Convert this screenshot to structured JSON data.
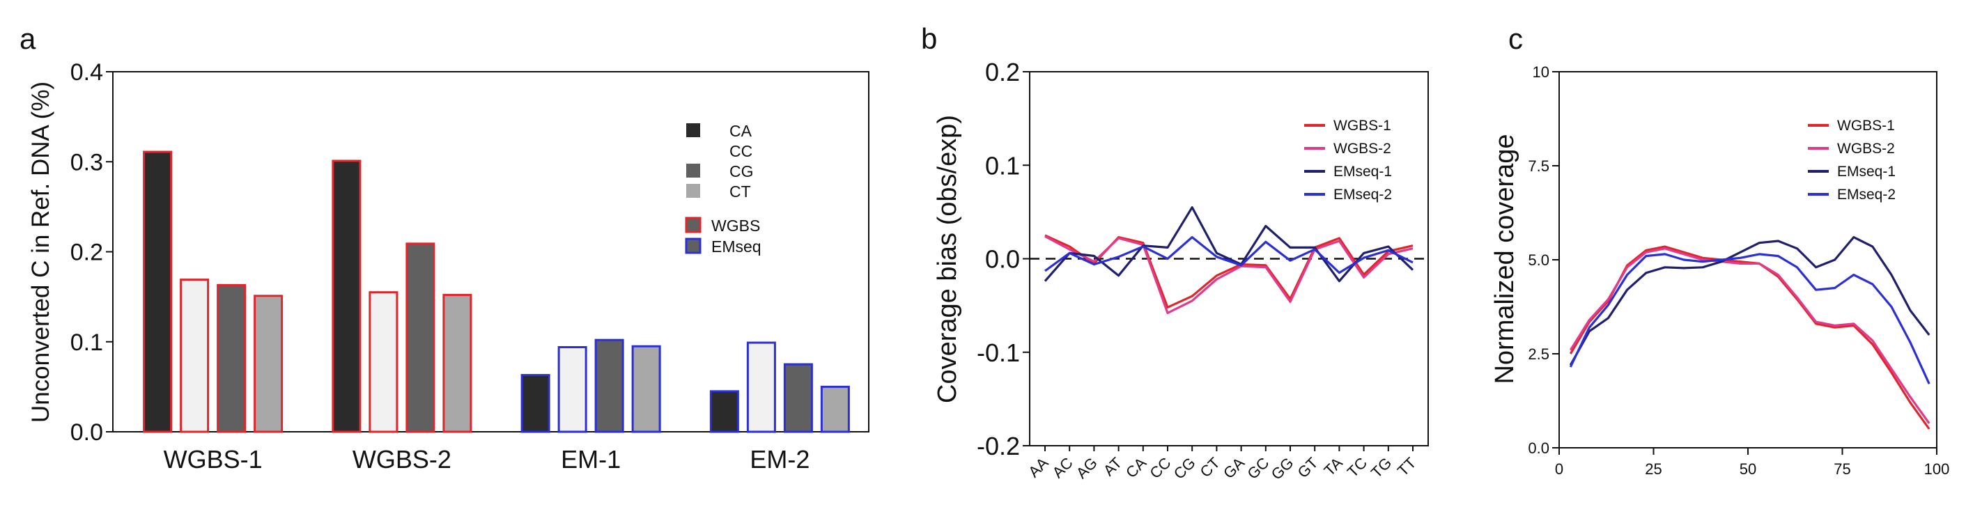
{
  "panels": [
    {
      "letter": "a",
      "chart_data": {
        "type": "bar",
        "ylabel": "Unconverted C in Ref. DNA (%)",
        "ylim": [
          0,
          0.4
        ],
        "yticks": [
          0.0,
          0.1,
          0.2,
          0.3,
          0.4
        ],
        "ytick_labels": [
          "0.0",
          "0.1",
          "0.2",
          "0.3",
          "0.4"
        ],
        "categories": [
          "WGBS-1",
          "WGBS-2",
          "EM-1",
          "EM-2"
        ],
        "category_method": [
          "WGBS",
          "WGBS",
          "EMseq",
          "EMseq"
        ],
        "series": [
          {
            "name": "CA",
            "color": "#2b2b2b",
            "values": [
              0.311,
              0.301,
              0.063,
              0.045
            ]
          },
          {
            "name": "CC",
            "color": "#f1f1f1",
            "values": [
              0.169,
              0.155,
              0.094,
              0.099
            ]
          },
          {
            "name": "CG",
            "color": "#606060",
            "values": [
              0.163,
              0.209,
              0.102,
              0.075
            ]
          },
          {
            "name": "CT",
            "color": "#a8a8a8",
            "values": [
              0.151,
              0.152,
              0.095,
              0.05
            ]
          }
        ],
        "method_legend": [
          {
            "name": "WGBS",
            "edge_color": "#e0262b"
          },
          {
            "name": "EMseq",
            "edge_color": "#2b2fd6"
          }
        ],
        "legend_position": "right"
      }
    },
    {
      "letter": "b",
      "chart_data": {
        "type": "line",
        "ylabel": "Coverage bias (obs/exp)",
        "ylim": [
          -0.2,
          0.2
        ],
        "yticks": [
          -0.2,
          -0.1,
          0.0,
          0.1,
          0.2
        ],
        "ytick_labels": [
          "-0.2",
          "-0.1",
          "0.0",
          "0.1",
          "0.2"
        ],
        "categories": [
          "AA",
          "AC",
          "AG",
          "AT",
          "CA",
          "CC",
          "CG",
          "CT",
          "GA",
          "GC",
          "GG",
          "GT",
          "TA",
          "TC",
          "TG",
          "TT"
        ],
        "reference_line": 0.0,
        "series": [
          {
            "name": "WGBS-1",
            "color": "#e0262b",
            "values": [
              0.025,
              0.013,
              -0.005,
              0.023,
              0.017,
              -0.052,
              -0.04,
              -0.018,
              -0.006,
              -0.007,
              -0.043,
              0.012,
              0.022,
              -0.017,
              0.008,
              0.014
            ]
          },
          {
            "name": "WGBS-2",
            "color": "#e23a8a",
            "values": [
              0.024,
              0.01,
              -0.003,
              0.022,
              0.015,
              -0.058,
              -0.045,
              -0.022,
              -0.008,
              -0.009,
              -0.046,
              0.01,
              0.019,
              -0.02,
              0.005,
              0.011
            ]
          },
          {
            "name": "EMseq-1",
            "color": "#1f1f6e",
            "values": [
              -0.024,
              0.006,
              0.003,
              -0.018,
              0.014,
              0.012,
              0.055,
              0.006,
              -0.006,
              0.035,
              0.012,
              0.012,
              -0.024,
              0.006,
              0.013,
              -0.012
            ]
          },
          {
            "name": "EMseq-2",
            "color": "#2b2fd6",
            "values": [
              -0.013,
              0.006,
              -0.006,
              0.002,
              0.013,
              0.0,
              0.023,
              0.002,
              -0.007,
              0.018,
              -0.002,
              0.01,
              -0.015,
              0.001,
              0.009,
              -0.004
            ]
          }
        ],
        "legend_position": "top-right"
      }
    },
    {
      "letter": "c",
      "chart_data": {
        "type": "line",
        "ylabel": "Normalized coverage",
        "xlim": [
          0,
          100
        ],
        "ylim": [
          0,
          10
        ],
        "xticks": [
          0,
          25,
          50,
          75,
          100
        ],
        "xtick_labels": [
          "0",
          "25",
          "50",
          "75",
          "100"
        ],
        "yticks": [
          0,
          2.5,
          5,
          7.5,
          10
        ],
        "ytick_labels": [
          "0.0",
          "2.5",
          "5.0",
          "7.5",
          "10"
        ],
        "x": [
          3,
          8,
          13,
          18,
          23,
          28,
          33,
          38,
          43,
          48,
          53,
          58,
          63,
          68,
          73,
          78,
          83,
          88,
          93,
          98
        ],
        "series": [
          {
            "name": "WGBS-1",
            "color": "#e0262b",
            "values": [
              2.5,
              3.35,
              3.9,
              4.85,
              5.25,
              5.35,
              5.2,
              5.05,
              5.0,
              4.95,
              4.9,
              4.55,
              3.95,
              3.3,
              3.2,
              3.25,
              2.75,
              2.0,
              1.2,
              0.5
            ]
          },
          {
            "name": "WGBS-2",
            "color": "#e23a8a",
            "values": [
              2.6,
              3.4,
              3.95,
              4.8,
              5.2,
              5.3,
              5.15,
              5.0,
              4.95,
              4.9,
              4.9,
              4.6,
              4.0,
              3.35,
              3.25,
              3.3,
              2.85,
              2.1,
              1.35,
              0.65
            ]
          },
          {
            "name": "EMseq-1",
            "color": "#1f1f6e",
            "values": [
              2.2,
              3.1,
              3.45,
              4.2,
              4.65,
              4.8,
              4.78,
              4.8,
              4.95,
              5.2,
              5.45,
              5.5,
              5.3,
              4.8,
              5.0,
              5.6,
              5.35,
              4.6,
              3.65,
              3.0
            ]
          },
          {
            "name": "EMseq-2",
            "color": "#2b2fd6",
            "values": [
              2.15,
              3.2,
              3.8,
              4.6,
              5.1,
              5.15,
              5.0,
              4.95,
              5.0,
              5.05,
              5.15,
              5.1,
              4.8,
              4.2,
              4.25,
              4.6,
              4.35,
              3.75,
              2.8,
              1.7
            ]
          }
        ],
        "legend_position": "top-right"
      }
    }
  ]
}
